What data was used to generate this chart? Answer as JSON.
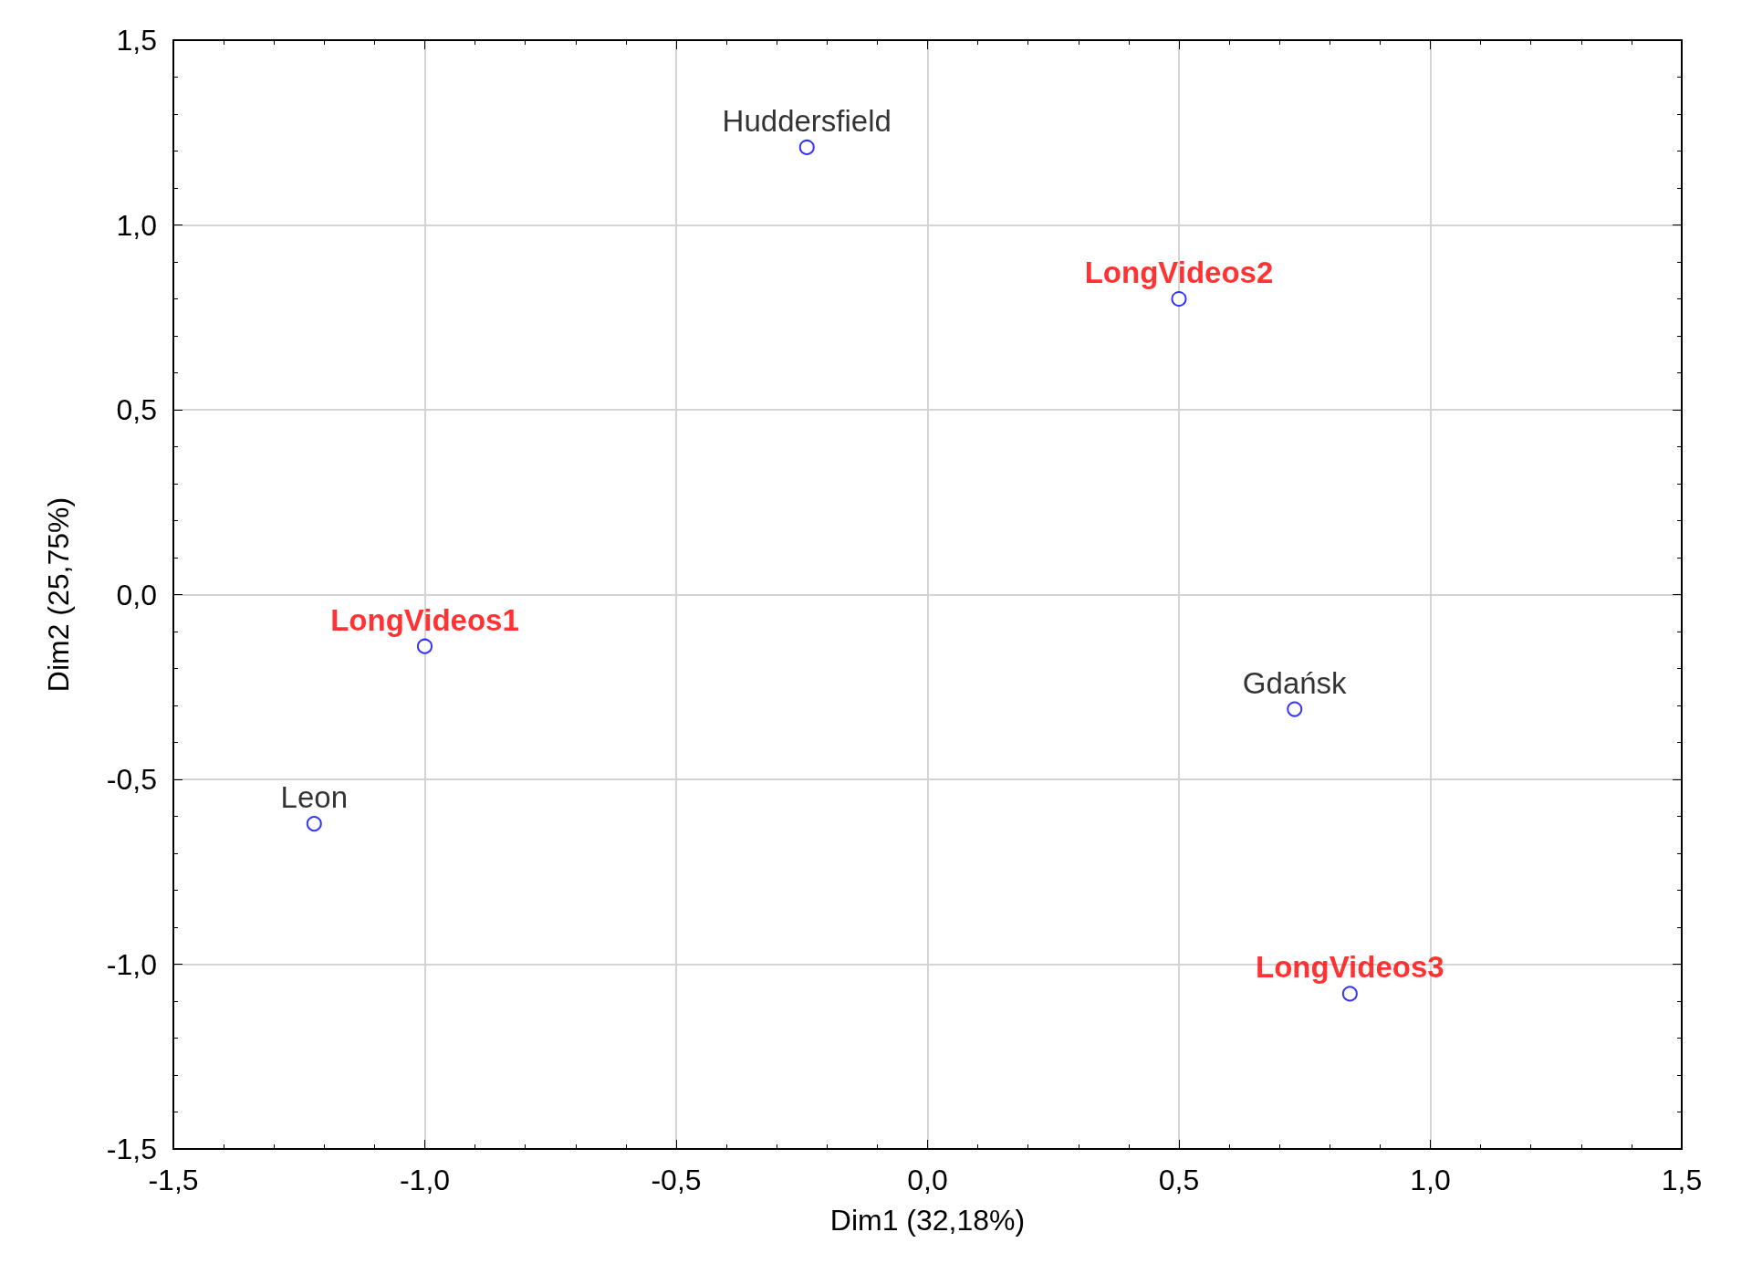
{
  "chart_data": {
    "type": "scatter",
    "xlabel": "Dim1 (32,18%)",
    "ylabel": "Dim2 (25,75%)",
    "xlim": [
      -1.5,
      1.5
    ],
    "ylim": [
      -1.5,
      1.5
    ],
    "xticks": [
      {
        "value": -1.5,
        "label": "-1,5"
      },
      {
        "value": -1,
        "label": "-1,0"
      },
      {
        "value": -0.5,
        "label": "-0,5"
      },
      {
        "value": 0,
        "label": "0,0"
      },
      {
        "value": 0.5,
        "label": "0,5"
      },
      {
        "value": 1,
        "label": "1,0"
      },
      {
        "value": 1.5,
        "label": "1,5"
      }
    ],
    "yticks": [
      {
        "value": -1.5,
        "label": "-1,5"
      },
      {
        "value": -1,
        "label": "-1,0"
      },
      {
        "value": -0.5,
        "label": "-0,5"
      },
      {
        "value": 0,
        "label": "0,0"
      },
      {
        "value": 0.5,
        "label": "0,5"
      },
      {
        "value": 1,
        "label": "1,0"
      },
      {
        "value": 1.5,
        "label": "1,5"
      }
    ],
    "grid": true,
    "marker": "circle",
    "series": [
      {
        "color": "#0000ff",
        "x": [
          -0.24,
          0.73,
          -1.22
        ],
        "values": [
          1.21,
          -0.31,
          -0.62
        ],
        "value_labels": [
          "Huddersfield",
          "Gdańsk",
          "Leon"
        ]
      },
      {
        "color": "#0000ff",
        "x": [
          -1.0,
          0.5,
          0.84
        ],
        "values": [
          -0.14,
          0.8,
          -1.08
        ],
        "value_labels": [
          "LongVideos1",
          "LongVideos2",
          "LongVideos3"
        ]
      }
    ]
  }
}
